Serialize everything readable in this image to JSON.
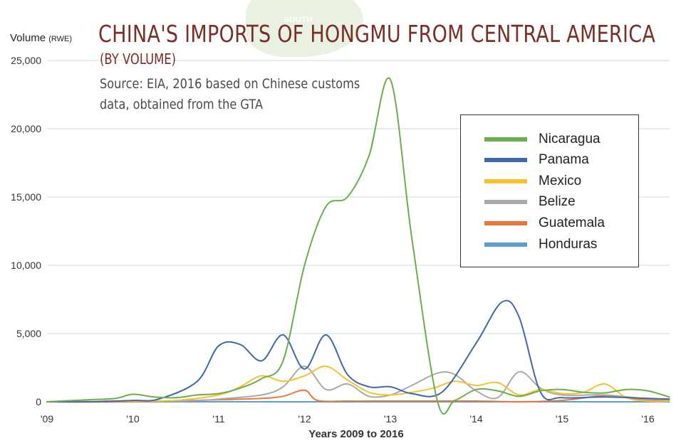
{
  "background_label": "SOUTH",
  "chart_data": {
    "type": "line",
    "title": "CHINA'S IMPORTS OF HONGMU FROM CENTRAL AMERICA",
    "subtitle": "(BY VOLUME)",
    "source_lines": [
      "Source: EIA, 2016 based on Chinese customs",
      "data, obtained from the GTA"
    ],
    "ylabel": "Volume",
    "ylabel_unit": "(RWE)",
    "xlabel": "Years 2009 to 2016",
    "xlim": [
      2009,
      2016.25
    ],
    "ylim": [
      0,
      25000
    ],
    "y_ticks": [
      {
        "value": 0,
        "label": "0"
      },
      {
        "value": 5000,
        "label": "5,000"
      },
      {
        "value": 10000,
        "label": "10,000"
      },
      {
        "value": 15000,
        "label": "15,000"
      },
      {
        "value": 20000,
        "label": "20,000"
      },
      {
        "value": 25000,
        "label": "25,000"
      }
    ],
    "x_ticks": [
      {
        "value": 2009,
        "label": "'09"
      },
      {
        "value": 2010,
        "label": "'10"
      },
      {
        "value": 2011,
        "label": "'11"
      },
      {
        "value": 2012,
        "label": "'12"
      },
      {
        "value": 2013,
        "label": "'13"
      },
      {
        "value": 2014,
        "label": "'14"
      },
      {
        "value": 2015,
        "label": "'15"
      },
      {
        "value": 2016,
        "label": "'16"
      }
    ],
    "grid": "horizontal",
    "legend_position": "top-right",
    "series": [
      {
        "name": "Nicaragua",
        "color": "#6aae4a",
        "points": [
          [
            2009,
            0
          ],
          [
            2009.5,
            150
          ],
          [
            2009.8,
            250
          ],
          [
            2010,
            550
          ],
          [
            2010.25,
            350
          ],
          [
            2010.5,
            300
          ],
          [
            2010.75,
            500
          ],
          [
            2011,
            600
          ],
          [
            2011.25,
            1000
          ],
          [
            2011.5,
            1700
          ],
          [
            2011.75,
            3000
          ],
          [
            2012,
            10000
          ],
          [
            2012.25,
            14300
          ],
          [
            2012.5,
            15000
          ],
          [
            2012.75,
            18000
          ],
          [
            2013,
            23600
          ],
          [
            2013.25,
            12000
          ],
          [
            2013.55,
            0
          ],
          [
            2013.75,
            100
          ],
          [
            2014,
            900
          ],
          [
            2014.25,
            800
          ],
          [
            2014.5,
            400
          ],
          [
            2014.75,
            800
          ],
          [
            2015,
            900
          ],
          [
            2015.25,
            700
          ],
          [
            2015.5,
            650
          ],
          [
            2015.75,
            900
          ],
          [
            2016,
            800
          ],
          [
            2016.25,
            350
          ]
        ]
      },
      {
        "name": "Panama",
        "color": "#3f68a8",
        "points": [
          [
            2009,
            0
          ],
          [
            2009.5,
            0
          ],
          [
            2010,
            100
          ],
          [
            2010.3,
            200
          ],
          [
            2010.75,
            1500
          ],
          [
            2011,
            4100
          ],
          [
            2011.25,
            4200
          ],
          [
            2011.5,
            3000
          ],
          [
            2011.75,
            4900
          ],
          [
            2012,
            2400
          ],
          [
            2012.25,
            4900
          ],
          [
            2012.5,
            2000
          ],
          [
            2012.75,
            1100
          ],
          [
            2013,
            1100
          ],
          [
            2013.25,
            600
          ],
          [
            2013.6,
            700
          ],
          [
            2014,
            4300
          ],
          [
            2014.3,
            7300
          ],
          [
            2014.5,
            6200
          ],
          [
            2014.75,
            700
          ],
          [
            2015,
            300
          ],
          [
            2015.5,
            350
          ],
          [
            2016,
            250
          ],
          [
            2016.25,
            200
          ]
        ]
      },
      {
        "name": "Mexico",
        "color": "#f6c131",
        "points": [
          [
            2009,
            0
          ],
          [
            2010,
            50
          ],
          [
            2010.5,
            100
          ],
          [
            2011,
            500
          ],
          [
            2011.25,
            1100
          ],
          [
            2011.5,
            1900
          ],
          [
            2011.75,
            1500
          ],
          [
            2012,
            1900
          ],
          [
            2012.25,
            2600
          ],
          [
            2012.5,
            1600
          ],
          [
            2012.75,
            700
          ],
          [
            2013,
            500
          ],
          [
            2013.25,
            700
          ],
          [
            2013.5,
            1000
          ],
          [
            2013.75,
            1500
          ],
          [
            2014,
            1200
          ],
          [
            2014.25,
            1400
          ],
          [
            2014.5,
            500
          ],
          [
            2014.75,
            900
          ],
          [
            2015,
            600
          ],
          [
            2015.25,
            700
          ],
          [
            2015.5,
            1300
          ],
          [
            2015.75,
            300
          ],
          [
            2016,
            50
          ],
          [
            2016.25,
            50
          ]
        ]
      },
      {
        "name": "Belize",
        "color": "#a9a9a9",
        "points": [
          [
            2009,
            0
          ],
          [
            2010,
            50
          ],
          [
            2010.75,
            100
          ],
          [
            2011,
            200
          ],
          [
            2011.5,
            500
          ],
          [
            2011.75,
            1100
          ],
          [
            2012,
            2600
          ],
          [
            2012.25,
            900
          ],
          [
            2012.5,
            1300
          ],
          [
            2012.75,
            400
          ],
          [
            2013,
            500
          ],
          [
            2013.25,
            1200
          ],
          [
            2013.55,
            2100
          ],
          [
            2013.75,
            2000
          ],
          [
            2014,
            800
          ],
          [
            2014.25,
            300
          ],
          [
            2014.5,
            2200
          ],
          [
            2014.75,
            1000
          ],
          [
            2015,
            500
          ],
          [
            2015.5,
            500
          ],
          [
            2016,
            200
          ],
          [
            2016.25,
            200
          ]
        ]
      },
      {
        "name": "Guatemala",
        "color": "#ea7636",
        "points": [
          [
            2009,
            0
          ],
          [
            2010,
            0
          ],
          [
            2011,
            150
          ],
          [
            2011.5,
            250
          ],
          [
            2011.75,
            400
          ],
          [
            2012,
            850
          ],
          [
            2012.15,
            100
          ],
          [
            2012.5,
            50
          ],
          [
            2013,
            50
          ],
          [
            2014,
            50
          ],
          [
            2014.5,
            0
          ],
          [
            2015,
            100
          ],
          [
            2015.5,
            450
          ],
          [
            2015.75,
            300
          ],
          [
            2016,
            100
          ],
          [
            2016.25,
            100
          ]
        ]
      },
      {
        "name": "Honduras",
        "color": "#5c9fcf",
        "points": [
          [
            2009,
            0
          ],
          [
            2010,
            0
          ],
          [
            2011,
            0
          ],
          [
            2012,
            0
          ],
          [
            2013,
            0
          ],
          [
            2014,
            0
          ],
          [
            2015,
            0
          ],
          [
            2016,
            0
          ],
          [
            2016.25,
            0
          ]
        ]
      }
    ]
  }
}
